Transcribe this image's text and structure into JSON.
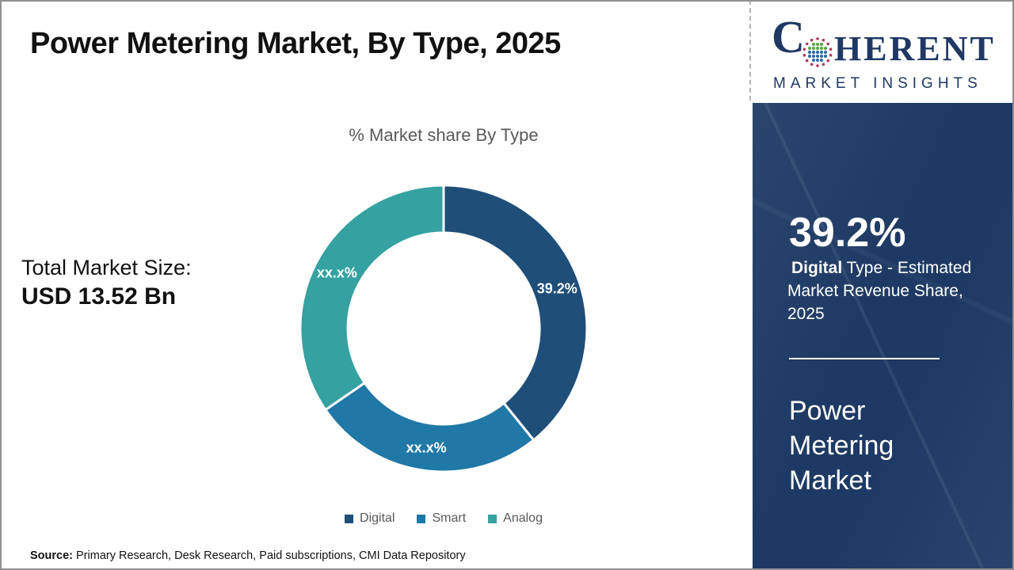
{
  "header": {
    "title": "Power Metering Market, By Type, 2025"
  },
  "logo": {
    "prefix": "C",
    "suffix": "HERENT",
    "subtitle": "MARKET INSIGHTS",
    "navy": "#1F3864",
    "globe_colors": {
      "ring": "#A93A60",
      "top": "#5BA546",
      "bottom": "#2E6DA8"
    }
  },
  "left_stat": {
    "label": "Total Market Size:",
    "value": "USD 13.52 Bn"
  },
  "chart_data": {
    "type": "pie",
    "donut": true,
    "title": "% Market share By Type",
    "categories": [
      "Digital",
      "Smart",
      "Analog"
    ],
    "values": [
      39.2,
      26.2,
      34.6
    ],
    "display_labels": [
      "39.2%",
      "xx.x%",
      "xx.x%"
    ],
    "colors": [
      "#1F4E79",
      "#1F78A6",
      "#35A1A1"
    ],
    "start_angle_deg": 0,
    "direction": "clockwise",
    "inner_radius_ratio": 0.67,
    "legend_position": "bottom"
  },
  "side_panel": {
    "stat_value": "39.2%",
    "desc_bold": "Digital",
    "desc_rest": " Type - Estimated Market Revenue Share, 2025",
    "market_name": "Power Metering Market",
    "background_color": "#1E3A64"
  },
  "footer": {
    "source_label": "Source:",
    "source_text": " Primary Research, Desk Research, Paid subscriptions, CMI Data Repository"
  }
}
